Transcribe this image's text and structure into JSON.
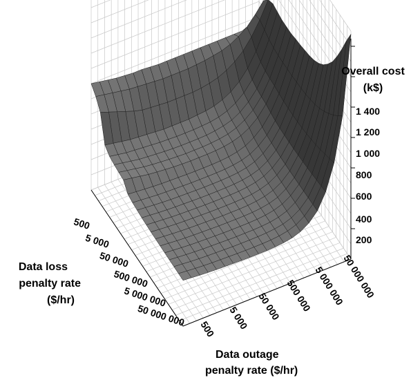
{
  "chart_data": {
    "type": "surface-3d",
    "title": "",
    "zlabel": [
      "Overall cost",
      "(k$)"
    ],
    "xlabel": [
      "Data loss",
      "penalty rate",
      "($/hr)"
    ],
    "ylabel": [
      "Data outage",
      "penalty rate ($/hr)"
    ],
    "x_ticks": [
      "500",
      "5 000",
      "50 000",
      "500 000",
      "5 000 000",
      "50 000 000"
    ],
    "y_ticks": [
      "500",
      "5 000",
      "50 000",
      "500 000",
      "5 000 000",
      "50 000 000"
    ],
    "z_ticks": [
      "200",
      "400",
      "600",
      "800",
      "1 000",
      "1 200",
      "1 400"
    ],
    "zlim": [
      0,
      1500
    ],
    "grid": true,
    "surface": {
      "x_log10_range": [
        2.7,
        7.7
      ],
      "y_log10_range": [
        2.7,
        7.7
      ],
      "rows_z": [
        [
          700,
          690,
          680,
          670,
          665,
          660,
          660,
          655,
          650,
          650,
          650,
          650,
          650,
          650,
          650,
          650,
          650,
          650,
          650,
          650,
          650
        ],
        [
          660,
          650,
          640,
          630,
          620,
          615,
          610,
          605,
          600,
          600,
          600,
          600,
          605,
          610,
          620,
          630,
          650,
          680,
          720,
          780,
          850
        ],
        [
          600,
          580,
          560,
          540,
          520,
          505,
          500,
          495,
          490,
          490,
          490,
          490,
          495,
          505,
          520,
          545,
          580,
          630,
          700,
          790,
          900
        ],
        [
          430,
          420,
          410,
          400,
          395,
          390,
          385,
          380,
          380,
          380,
          380,
          385,
          390,
          400,
          420,
          450,
          495,
          560,
          650,
          770,
          920
        ],
        [
          400,
          390,
          380,
          375,
          370,
          365,
          360,
          358,
          355,
          355,
          355,
          358,
          362,
          372,
          390,
          420,
          465,
          530,
          625,
          750,
          910
        ],
        [
          390,
          380,
          370,
          360,
          355,
          350,
          345,
          342,
          340,
          340,
          340,
          342,
          348,
          358,
          375,
          405,
          450,
          515,
          610,
          740,
          900
        ],
        [
          385,
          375,
          365,
          355,
          348,
          343,
          338,
          335,
          332,
          332,
          332,
          335,
          340,
          350,
          368,
          398,
          442,
          508,
          605,
          735,
          900
        ],
        [
          380,
          370,
          360,
          350,
          344,
          338,
          333,
          330,
          328,
          328,
          328,
          330,
          335,
          345,
          362,
          392,
          437,
          504,
          602,
          733,
          900
        ],
        [
          330,
          325,
          320,
          315,
          312,
          310,
          308,
          306,
          305,
          305,
          305,
          307,
          312,
          322,
          340,
          372,
          420,
          492,
          595,
          735,
          910
        ],
        [
          320,
          315,
          310,
          305,
          302,
          300,
          298,
          296,
          295,
          295,
          295,
          297,
          302,
          312,
          330,
          362,
          410,
          484,
          590,
          735,
          915
        ],
        [
          315,
          310,
          305,
          300,
          297,
          295,
          293,
          291,
          290,
          290,
          290,
          292,
          297,
          307,
          325,
          357,
          405,
          480,
          588,
          738,
          925
        ],
        [
          310,
          305,
          300,
          296,
          293,
          291,
          289,
          287,
          286,
          286,
          286,
          288,
          293,
          303,
          321,
          353,
          402,
          478,
          588,
          742,
          935
        ],
        [
          308,
          303,
          298,
          294,
          291,
          289,
          287,
          285,
          284,
          284,
          284,
          286,
          291,
          301,
          319,
          351,
          400,
          478,
          590,
          748,
          950
        ],
        [
          306,
          301,
          296,
          292,
          289,
          287,
          285,
          283,
          282,
          282,
          282,
          284,
          289,
          299,
          317,
          349,
          399,
          479,
          594,
          758,
          975
        ],
        [
          305,
          300,
          295,
          291,
          288,
          286,
          284,
          282,
          281,
          281,
          281,
          283,
          288,
          298,
          316,
          348,
          399,
          481,
          600,
          772,
          1010
        ],
        [
          304,
          299,
          294,
          290,
          287,
          285,
          283,
          281,
          280,
          280,
          280,
          282,
          287,
          297,
          315,
          348,
          400,
          484,
          608,
          790,
          1060
        ],
        [
          303,
          298,
          293,
          289,
          286,
          284,
          282,
          280,
          279,
          279,
          279,
          281,
          286,
          296,
          315,
          348,
          401,
          488,
          618,
          815,
          1120
        ],
        [
          302,
          297,
          292,
          288,
          285,
          283,
          281,
          279,
          278,
          278,
          278,
          280,
          285,
          295,
          314,
          348,
          402,
          492,
          630,
          845,
          1200
        ],
        [
          302,
          297,
          292,
          288,
          285,
          283,
          281,
          279,
          278,
          278,
          278,
          280,
          285,
          295,
          314,
          348,
          403,
          497,
          645,
          880,
          1290
        ],
        [
          301,
          296,
          291,
          287,
          284,
          282,
          280,
          278,
          277,
          277,
          277,
          279,
          284,
          294,
          313,
          348,
          404,
          502,
          660,
          920,
          1390
        ],
        [
          301,
          296,
          291,
          287,
          284,
          282,
          280,
          278,
          277,
          277,
          277,
          279,
          284,
          294,
          313,
          348,
          405,
          508,
          678,
          965,
          1480
        ]
      ]
    }
  }
}
